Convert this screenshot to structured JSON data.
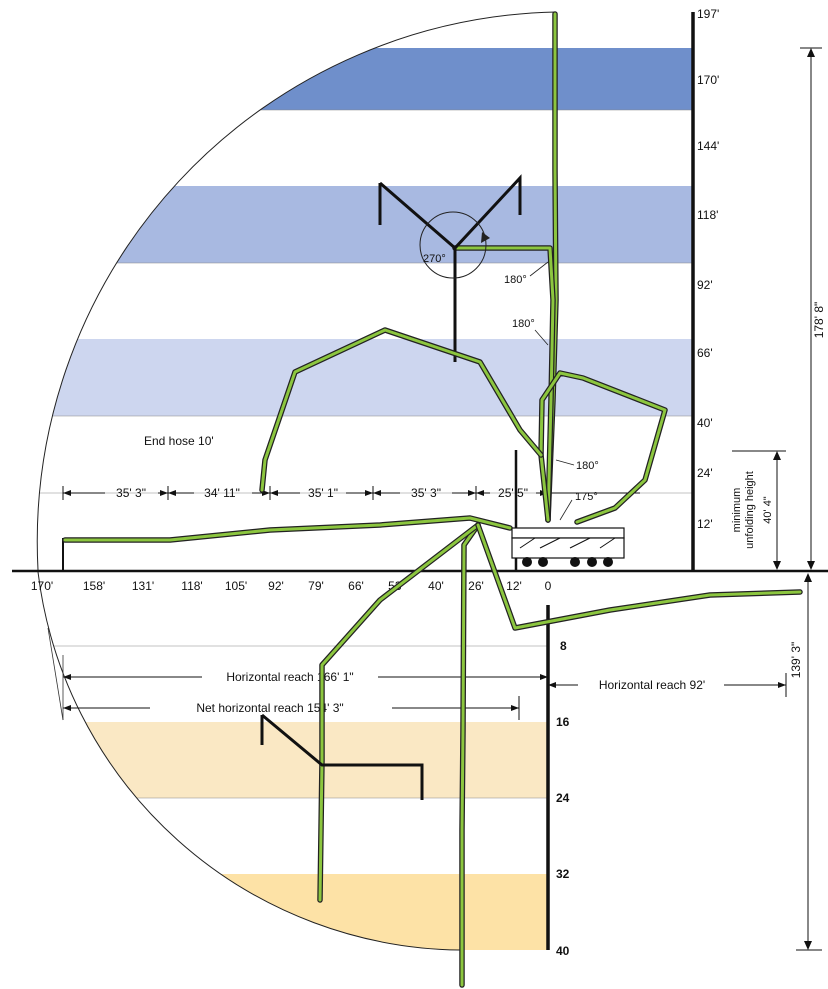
{
  "height_ticks": [
    "197'",
    "170'",
    "144'",
    "118'",
    "92'",
    "66'",
    "40'",
    "24'",
    "12'"
  ],
  "reach_ticks": [
    "170'",
    "158'",
    "131'",
    "118'",
    "105'",
    "92'",
    "79'",
    "66'",
    "53'",
    "40'",
    "26'",
    "12'",
    "0"
  ],
  "depth_ticks": [
    "8",
    "16",
    "24",
    "32",
    "40"
  ],
  "segments": [
    "35' 3\"",
    "34' 11\"",
    "35' 1\"",
    "35' 3\"",
    "25' 5\""
  ],
  "labels": {
    "end_hose": "End hose 10'",
    "total_height": "178' 8\"",
    "min_unfold_line1": "minimum",
    "min_unfold_line2": "unfolding height",
    "min_unfold_value": "40' 4\"",
    "horizontal_reach_left": "Horizontal reach 166' 1\"",
    "net_horizontal_reach": "Net horizontal reach 154' 3\"",
    "horizontal_reach_right": "Horizontal reach 92'",
    "depth_value": "139' 3\""
  },
  "angles": {
    "a270": "270°",
    "a180_top": "180°",
    "a180_mid": "180°",
    "a180_low": "180°",
    "a175": "175°"
  },
  "colors": {
    "band_dark": "#6f8fcb",
    "band_mid": "#a8b9e1",
    "band_light": "#cdd6ef",
    "band_tan_light": "#fae8c4",
    "band_tan_dark": "#fde2a6",
    "boom": "#8cc63f"
  }
}
